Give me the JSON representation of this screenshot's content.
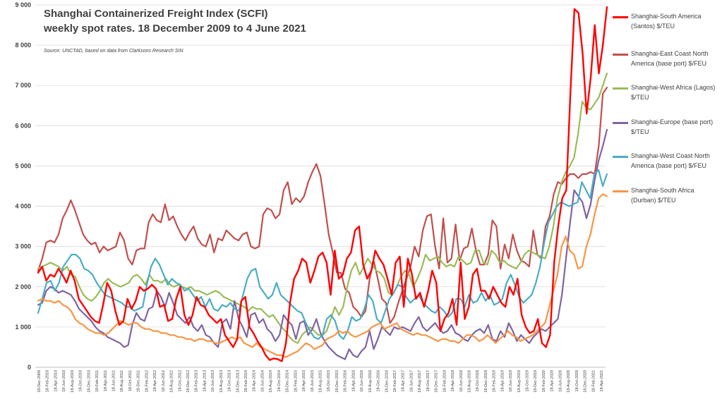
{
  "chart_data": {
    "type": "line",
    "title_line1": "Shanghai Containerized Freight Index (SCFI)",
    "title_line2": "weekly spot rates. 18 December 2009 to 4 June 2021",
    "source_note": "Source: UNCTAD, based on data from Clarksons Research SIN",
    "ylim": [
      0,
      9000
    ],
    "yticks": [
      "0",
      "1 000",
      "2 000",
      "3 000",
      "4 000",
      "5 000",
      "6 000",
      "7 000",
      "8 000",
      "9 000"
    ],
    "grid": true,
    "legend_position": "right",
    "x_labels": [
      "18-Dec-2009",
      "18-Feb-2010",
      "18-Apr-2010",
      "18-Jun-2010",
      "18-Aug-2010",
      "18-Oct-2010",
      "18-Dec-2010",
      "18-Feb-2011",
      "18-Apr-2011",
      "18-Jun-2011",
      "18-Aug-2011",
      "18-Oct-2011",
      "18-Dec-2011",
      "18-Feb-2012",
      "18-Apr-2012",
      "18-Jun-2012",
      "18-Aug-2012",
      "18-Oct-2012",
      "18-Dec-2012",
      "18-Feb-2013",
      "18-Apr-2013",
      "18-Jun-2013",
      "18-Aug-2013",
      "18-Oct-2013",
      "18-Dec-2013",
      "18-Feb-2014",
      "18-Apr-2014",
      "18-Jun-2014",
      "18-Aug-2014",
      "18-Oct-2014",
      "18-Dec-2014",
      "18-Feb-2015",
      "18-Apr-2015",
      "18-Jun-2015",
      "18-Aug-2015",
      "18-Oct-2015",
      "18-Dec-2015",
      "18-Feb-2016",
      "18-Apr-2016",
      "18-Jun-2016",
      "18-Aug-2016",
      "18-Oct-2016",
      "18-Dec-2016",
      "18-Feb-2017",
      "18-Apr-2017",
      "18-Jun-2017",
      "18-Aug-2017",
      "18-Oct-2017",
      "18-Dec-2017",
      "18-Feb-2018",
      "18-Apr-2018",
      "18-Jun-2018",
      "18-Aug-2018",
      "18-Oct-2018",
      "18-Dec-2018",
      "18-Feb-2019",
      "18-Apr-2019",
      "18-Jun-2019",
      "18-Aug-2019",
      "18-Oct-2019",
      "18-Dec-2019",
      "18-Feb-2020",
      "18-Apr-2020",
      "18-Jun-2020",
      "18-Aug-2020",
      "18-Oct-2020",
      "18-Dec-2020",
      "18-Feb-2021",
      "18-Apr-2021"
    ],
    "series": [
      {
        "name": "Shanghai-South America (Santos) $/TEU",
        "color": "#ff0000",
        "width": 2.4,
        "values": [
          2350,
          2500,
          2150,
          2300,
          2250,
          2450,
          2300,
          2100,
          2400,
          2150,
          1700,
          1550,
          1400,
          1250,
          1150,
          1100,
          1550,
          2100,
          1900,
          1400,
          1050,
          1150,
          1700,
          1450,
          1650,
          2000,
          1900,
          1950,
          2050,
          1950,
          1500,
          1550,
          1150,
          1200,
          1700,
          2000,
          1300,
          1050,
          1300,
          1750,
          1550,
          1500,
          1300,
          1200,
          1100,
          1200,
          800,
          650,
          500,
          700,
          1650,
          1750,
          1000,
          850,
          650,
          500,
          300,
          180,
          220,
          200,
          150,
          600,
          1600,
          2200,
          2400,
          2700,
          2600,
          2100,
          2400,
          2750,
          2850,
          2600,
          1800,
          2900,
          2200,
          2300,
          2700,
          2850,
          3400,
          3500,
          2550,
          2200,
          2400,
          2900,
          2700,
          2550,
          2200,
          1800,
          2600,
          2750,
          1500,
          2700,
          2300,
          1700,
          1850,
          1500,
          1900,
          2400,
          2100,
          900,
          1200,
          1350,
          1700,
          1050,
          2600,
          1200,
          1500,
          2300,
          2450,
          1900,
          1900,
          1700,
          2000,
          1800,
          1600,
          1500,
          2000,
          1800,
          2200,
          1300,
          1000,
          850,
          900,
          1200,
          600,
          500,
          800,
          2600,
          3500,
          4200,
          4400,
          6800,
          8900,
          8800,
          7800,
          6300,
          7200,
          8500,
          7300,
          8000,
          8950
        ]
      },
      {
        "name": "Shanghai-East Coast North America (base port) $/FEU",
        "color": "#c0504d",
        "width": 2.2,
        "values": [
          2400,
          2700,
          3100,
          3150,
          3100,
          3300,
          3700,
          3900,
          4150,
          3900,
          3600,
          3300,
          3150,
          3050,
          3100,
          2850,
          3000,
          2900,
          2950,
          3000,
          3350,
          3150,
          2700,
          2550,
          2900,
          2950,
          2950,
          3600,
          3800,
          3650,
          3600,
          4050,
          3650,
          3750,
          3500,
          3300,
          3150,
          3350,
          3500,
          3200,
          3050,
          3000,
          3300,
          2850,
          3200,
          3150,
          3400,
          3300,
          3200,
          3150,
          3300,
          3350,
          3000,
          2950,
          3000,
          3800,
          3950,
          3900,
          3700,
          3800,
          4400,
          4600,
          4050,
          4200,
          4100,
          4250,
          4600,
          4850,
          5050,
          4750,
          4050,
          3300,
          2850,
          2350,
          2350,
          1950,
          1850,
          1500,
          1400,
          1250,
          1400,
          2200,
          2650,
          2200,
          1700,
          1600,
          1100,
          1250,
          1600,
          1900,
          2200,
          2500,
          3000,
          2750,
          3400,
          3750,
          3800,
          3000,
          2450,
          3700,
          2600,
          2700,
          3550,
          2650,
          2950,
          3000,
          3450,
          2900,
          2550,
          2550,
          2800,
          3650,
          3500,
          2450,
          3050,
          2700,
          3300,
          2900,
          2650,
          2600,
          2500,
          3400,
          2800,
          2700,
          3500,
          3750,
          4300,
          4600,
          4550,
          4700,
          4800,
          4800,
          4700,
          4800,
          4800,
          4850,
          4800,
          5500,
          6800,
          6950
        ]
      },
      {
        "name": "Shanghai-West Africa (Lagos) $/TEU",
        "color": "#9bbb59",
        "width": 2.2,
        "values": [
          2450,
          2500,
          2550,
          2600,
          2550,
          2500,
          2400,
          2500,
          2300,
          2250,
          2000,
          1800,
          1700,
          1650,
          1750,
          1900,
          2100,
          2200,
          2100,
          2050,
          2000,
          2050,
          2100,
          2250,
          2300,
          2200,
          2050,
          2300,
          2150,
          2150,
          2100,
          2200,
          2050,
          2000,
          2050,
          2000,
          1950,
          2000,
          1900,
          1900,
          1850,
          1800,
          1850,
          1900,
          1850,
          1750,
          1700,
          1650,
          1600,
          1550,
          1500,
          1400,
          1500,
          1450,
          1450,
          1350,
          1250,
          1300,
          1150,
          1000,
          900,
          750,
          650,
          600,
          800,
          900,
          1000,
          900,
          800,
          800,
          900,
          1200,
          1500,
          1300,
          1500,
          2000,
          2400,
          2600,
          2300,
          2500,
          2700,
          2550,
          2400,
          2350,
          2200,
          1850,
          1800,
          2000,
          2250,
          2400,
          2300,
          2000,
          2200,
          2450,
          2800,
          2650,
          2700,
          2750,
          2600,
          2500,
          2550,
          2500,
          2750,
          2650,
          2550,
          2600,
          2900,
          2900,
          2600,
          2550,
          2900,
          2800,
          2600,
          2650,
          2550,
          2500,
          2450,
          2600,
          2800,
          2900,
          2850,
          2800,
          2750,
          2700,
          3000,
          3500,
          4200,
          4600,
          4850,
          5000,
          5200,
          5800,
          6600,
          6450,
          6400,
          6550,
          6700,
          7000,
          7300
        ]
      },
      {
        "name": "Shanghai-Europe (base port) $/TEU",
        "color": "#8064a2",
        "width": 2.2,
        "values": [
          1550,
          1600,
          1900,
          2000,
          1950,
          1850,
          1900,
          1850,
          1800,
          1650,
          1450,
          1350,
          1250,
          1150,
          1000,
          900,
          850,
          750,
          700,
          650,
          600,
          500,
          550,
          1050,
          1350,
          1200,
          1150,
          1450,
          1500,
          1900,
          1750,
          1500,
          1850,
          1600,
          1300,
          1200,
          1100,
          1250,
          1000,
          900,
          1050,
          800,
          750,
          600,
          500,
          1100,
          1200,
          950,
          1650,
          1200,
          1000,
          750,
          1300,
          1350,
          1100,
          1200,
          950,
          850,
          650,
          800,
          1300,
          1150,
          1050,
          700,
          1100,
          1150,
          800,
          950,
          1200,
          850,
          650,
          500,
          400,
          300,
          250,
          200,
          450,
          300,
          250,
          400,
          500,
          900,
          450,
          700,
          1000,
          900,
          800,
          1000,
          950,
          1000,
          950,
          900,
          1100,
          1250,
          1000,
          900,
          1000,
          1100,
          950,
          850,
          900,
          1050,
          850,
          800,
          700,
          650,
          800,
          900,
          950,
          850,
          1050,
          700,
          650,
          900,
          750,
          1100,
          900,
          650,
          800,
          700,
          600,
          750,
          850,
          950,
          900,
          1000,
          1100,
          1200,
          1800,
          2700,
          3600,
          4400,
          4250,
          4100,
          3700,
          4050,
          4650,
          5150,
          5500,
          5900
        ]
      },
      {
        "name": "Shanghai-West Coast  North America (base port) $/FEU",
        "color": "#4bacc6",
        "width": 2.2,
        "values": [
          1350,
          1700,
          2100,
          2150,
          1900,
          2100,
          2500,
          2650,
          2800,
          2800,
          2700,
          2450,
          2400,
          2300,
          2100,
          1950,
          1800,
          1750,
          1700,
          1650,
          1600,
          1500,
          1500,
          1400,
          1450,
          1500,
          2050,
          2500,
          2700,
          2550,
          2300,
          2050,
          2200,
          2100,
          2050,
          1900,
          1950,
          1800,
          1650,
          1750,
          1500,
          1700,
          1450,
          1400,
          1550,
          1500,
          1600,
          1450,
          1400,
          1800,
          2200,
          2400,
          2450,
          2000,
          1850,
          1700,
          1800,
          2100,
          1800,
          1700,
          1600,
          1500,
          1400,
          1350,
          1100,
          900,
          750,
          700,
          800,
          1200,
          1300,
          1150,
          800,
          700,
          900,
          1250,
          1150,
          1200,
          1450,
          1800,
          1650,
          1200,
          1100,
          1400,
          1700,
          1850,
          2050,
          2000,
          1750,
          1600,
          1700,
          1800,
          1600,
          1500,
          1400,
          1350,
          1500,
          1400,
          1250,
          1350,
          1700,
          1700,
          1500,
          1800,
          1600,
          1650,
          1850,
          1650,
          1800,
          1550,
          1600,
          1700,
          2100,
          2300,
          2050,
          1750,
          1600,
          1700,
          1800,
          2100,
          2500,
          3100,
          3600,
          3800,
          4000,
          4100,
          4050,
          4000,
          4050,
          4100,
          4600,
          4400,
          4200,
          4800,
          4900,
          4500,
          4800
        ]
      },
      {
        "name": "Shanghai-South Africa (Durban) $/TEU",
        "color": "#f79646",
        "width": 2.2,
        "values": [
          1650,
          1700,
          1650,
          1650,
          1600,
          1650,
          1550,
          1500,
          1400,
          1200,
          1100,
          1050,
          950,
          900,
          850,
          850,
          800,
          850,
          950,
          1050,
          1150,
          1100,
          1050,
          1100,
          1100,
          1000,
          950,
          950,
          900,
          900,
          850,
          850,
          800,
          800,
          750,
          750,
          700,
          700,
          650,
          700,
          700,
          650,
          650,
          600,
          600,
          650,
          700,
          750,
          700,
          750,
          600,
          550,
          500,
          600,
          500,
          450,
          400,
          350,
          300,
          300,
          250,
          300,
          350,
          400,
          500,
          600,
          550,
          450,
          500,
          550,
          700,
          750,
          800,
          900,
          850,
          900,
          800,
          750,
          800,
          850,
          900,
          1000,
          1050,
          1100,
          950,
          1000,
          1050,
          1100,
          950,
          900,
          850,
          800,
          850,
          800,
          800,
          750,
          700,
          650,
          700,
          700,
          650,
          650,
          600,
          700,
          800,
          800,
          750,
          650,
          700,
          800,
          700,
          600,
          700,
          800,
          900,
          800,
          750,
          650,
          700,
          750,
          800,
          900,
          1000,
          1100,
          1500,
          1900,
          2300,
          3000,
          3250,
          2900,
          2800,
          2450,
          2500,
          3000,
          3300,
          3800,
          4200,
          4300,
          4250
        ]
      }
    ]
  }
}
